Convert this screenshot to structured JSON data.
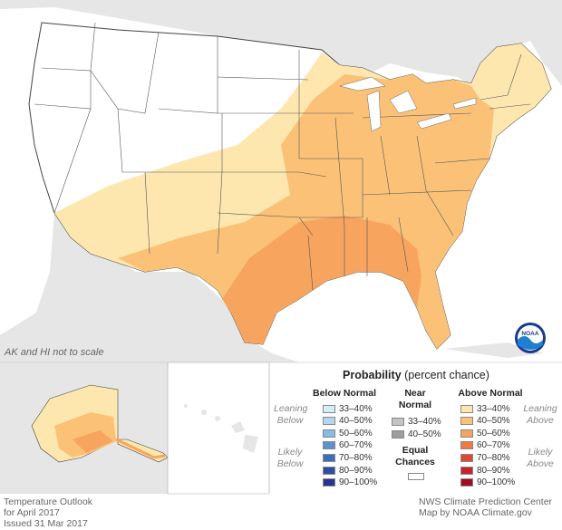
{
  "map": {
    "scale_note": "AK and HI not to scale"
  },
  "legend": {
    "title_bold": "Probability",
    "title_rest": "(percent chance)",
    "below_normal": {
      "heading": "Below Normal",
      "side_top": "Leaning Below",
      "side_bottom": "Likely Below",
      "items": [
        {
          "label": "33–40%",
          "color": "#d6ecf7"
        },
        {
          "label": "40–50%",
          "color": "#b3d7ee"
        },
        {
          "label": "50–60%",
          "color": "#86bde0"
        },
        {
          "label": "60–70%",
          "color": "#5b93cb"
        },
        {
          "label": "70–80%",
          "color": "#3f6db8"
        },
        {
          "label": "80–90%",
          "color": "#2f4ea3"
        },
        {
          "label": "90–100%",
          "color": "#283490"
        }
      ]
    },
    "near_normal": {
      "heading_line1": "Near",
      "heading_line2": "Normal",
      "items": [
        {
          "label": "33–40%",
          "color": "#c4c4c4"
        },
        {
          "label": "40–50%",
          "color": "#9e9e9e"
        }
      ],
      "equal_line1": "Equal",
      "equal_line2": "Chances",
      "equal_color": "#ffffff"
    },
    "above_normal": {
      "heading": "Above Normal",
      "side_top": "Leaning Above",
      "side_bottom": "Likely Above",
      "items": [
        {
          "label": "33–40%",
          "color": "#fde7ae"
        },
        {
          "label": "40–50%",
          "color": "#fbc277"
        },
        {
          "label": "50–60%",
          "color": "#f7a55e"
        },
        {
          "label": "60–70%",
          "color": "#ef7a44"
        },
        {
          "label": "70–80%",
          "color": "#e04832"
        },
        {
          "label": "80–90%",
          "color": "#c7242b"
        },
        {
          "label": "90–100%",
          "color": "#a00c1f"
        }
      ]
    }
  },
  "footer": {
    "left_line1": "Temperature Outlook",
    "left_line2": "for April 2017",
    "left_line3": "Issued 31 Mar 2017",
    "right_line1": "NWS Climate Prediction Center",
    "right_line2": "Map by NOAA Climate.gov"
  },
  "logo": {
    "text": "NOAA"
  },
  "colors": {
    "background_land": "#e6e6e6",
    "water": "#ffffff",
    "equal_chances": "#ffffff",
    "state_border": "#555555"
  }
}
